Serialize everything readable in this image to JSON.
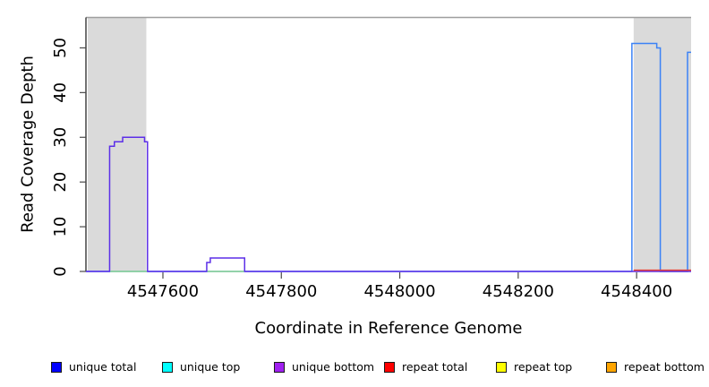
{
  "chart_data": {
    "type": "line",
    "subtype": "step-coverage",
    "title": "",
    "xlabel": "Coordinate in Reference Genome",
    "ylabel": "Read Coverage Depth",
    "xlim": [
      4547470,
      4548492
    ],
    "ylim": [
      0,
      56.8
    ],
    "x_ticks": [
      4547600,
      4547800,
      4548000,
      4548200,
      4548400
    ],
    "y_ticks": [
      0,
      10,
      20,
      30,
      40,
      50
    ],
    "grid": false,
    "shaded_regions": [
      {
        "name": "shaded-region-left",
        "x0": 4547473,
        "x1": 4547572
      },
      {
        "name": "shaded-region-right",
        "x0": 4548395,
        "x1": 4548492
      }
    ],
    "series": [
      {
        "name": "unique-total-coverage",
        "color": "#3b82f6",
        "segments": [
          [
            [
              4547470,
              0
            ],
            [
              4548392,
              0
            ],
            [
              4548392,
              51
            ],
            [
              4548434,
              51
            ],
            [
              4548434,
              50
            ],
            [
              4548440,
              50
            ],
            [
              4548440,
              0
            ],
            [
              4548486,
              0
            ],
            [
              4548486,
              49
            ],
            [
              4548492,
              49
            ]
          ]
        ]
      },
      {
        "name": "unique-bottom-coverage",
        "color": "#5c2fe8",
        "segments": [
          [
            [
              4547470,
              0
            ],
            [
              4547510,
              0
            ],
            [
              4547510,
              28
            ],
            [
              4547518,
              28
            ],
            [
              4547518,
              29
            ],
            [
              4547532,
              29
            ],
            [
              4547532,
              30
            ],
            [
              4547569,
              30
            ],
            [
              4547569,
              29
            ],
            [
              4547574,
              29
            ],
            [
              4547574,
              0
            ],
            [
              4547674,
              0
            ],
            [
              4547674,
              2
            ],
            [
              4547680,
              2
            ],
            [
              4547680,
              3
            ],
            [
              4547738,
              3
            ],
            [
              4547738,
              0
            ],
            [
              4548492,
              0
            ]
          ]
        ]
      },
      {
        "name": "baseline-green-overlap",
        "color": "#90d890",
        "segments": [
          [
            [
              4547511,
              0
            ],
            [
              4547573,
              0
            ]
          ],
          [
            [
              4547675,
              0
            ],
            [
              4547737,
              0
            ]
          ]
        ]
      },
      {
        "name": "repeat-total-baseline",
        "color": "#e53935",
        "segments": [
          [
            [
              4548395,
              0
            ],
            [
              4548492,
              0
            ]
          ]
        ]
      }
    ],
    "legend": {
      "position": "bottom",
      "items": [
        {
          "label": "unique total",
          "color": "#0000ff"
        },
        {
          "label": "unique top",
          "color": "#00ffff"
        },
        {
          "label": "unique bottom",
          "color": "#a020f0"
        },
        {
          "label": "repeat total",
          "color": "#ff0000"
        },
        {
          "label": "repeat top",
          "color": "#ffff00"
        },
        {
          "label": "repeat bottom",
          "color": "#ffa500"
        }
      ]
    },
    "colors": {
      "shaded_region": "#dadada",
      "frame_top": "#9e9e9e",
      "axis": "#262626",
      "tick": "#4a4a4a",
      "tick_label": "#000000"
    }
  }
}
